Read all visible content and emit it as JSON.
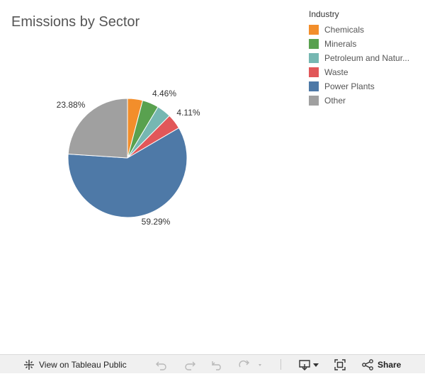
{
  "title": "Emissions by Sector",
  "legend": {
    "title": "Industry",
    "items": [
      {
        "label": "Chemicals",
        "color": "#f28e2b"
      },
      {
        "label": "Minerals",
        "color": "#59a14f"
      },
      {
        "label": "Petroleum and Natur...",
        "color": "#76b7b2"
      },
      {
        "label": "Waste",
        "color": "#e15759"
      },
      {
        "label": "Power Plants",
        "color": "#4e79a7"
      },
      {
        "label": "Other",
        "color": "#a0a0a0"
      }
    ]
  },
  "chart_data": {
    "type": "pie",
    "title": "Emissions by Sector",
    "labels": [
      "Chemicals",
      "Minerals",
      "Petroleum and Natur...",
      "Waste",
      "Power Plants",
      "Other"
    ],
    "values": [
      4.1,
      4.46,
      3.86,
      4.11,
      59.29,
      23.88
    ],
    "data_labels": [
      "",
      "4.46%",
      "",
      "4.11%",
      "59.29%",
      "23.88%"
    ],
    "colors": [
      "#f28e2b",
      "#59a14f",
      "#76b7b2",
      "#e15759",
      "#4e79a7",
      "#a0a0a0"
    ],
    "legend_position": "top-right"
  },
  "toolbar": {
    "view_label": "View on Tableau Public",
    "share_label": "Share",
    "icons": {
      "view": "tableau-logo-icon",
      "undo": "undo-icon",
      "redo": "redo-icon",
      "revert": "revert-icon",
      "refresh": "refresh-icon",
      "download": "download-icon",
      "fullscreen": "fullscreen-icon",
      "share": "share-icon"
    }
  }
}
